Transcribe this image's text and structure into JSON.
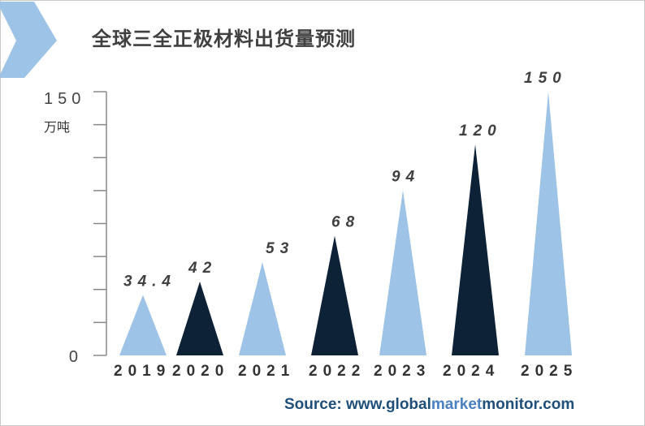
{
  "title": "全球三全正极材料出货量预测",
  "source": {
    "prefix": "Source: www.",
    "part1": "global",
    "part2": "market",
    "part3": "monitor",
    "suffix": ".com"
  },
  "colors": {
    "light": "#9dc3e6",
    "dark": "#0d2137",
    "logo": "#9dc3e6"
  },
  "logo_icon": "arrow-chevron-logo",
  "chart_data": {
    "type": "bar",
    "bar_shape": "triangle",
    "title": "全球三全正极材料出货量预测",
    "unit": "万吨",
    "ylim": [
      0,
      150
    ],
    "y_tick_labels": [
      "0",
      "150"
    ],
    "categories": [
      "2019",
      "2020",
      "2021",
      "2022",
      "2023",
      "2024",
      "2025"
    ],
    "values": [
      34.4,
      42,
      53,
      68,
      94,
      120,
      150
    ],
    "value_labels": [
      "34.4",
      "42",
      "53",
      "68",
      "94",
      "120",
      "150"
    ],
    "bar_colors": [
      "#9dc3e6",
      "#0d2137",
      "#9dc3e6",
      "#0d2137",
      "#9dc3e6",
      "#0d2137",
      "#9dc3e6"
    ],
    "grid": false,
    "legend": "none"
  }
}
